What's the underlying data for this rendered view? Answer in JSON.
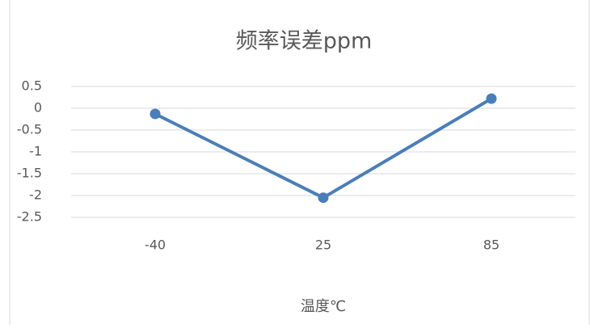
{
  "chart_data": {
    "type": "line",
    "title": "频率误差ppm",
    "x_label": "温度℃",
    "categories": [
      "-40",
      "25",
      "85"
    ],
    "values": [
      -0.13,
      -2.05,
      0.22
    ],
    "color": "#4a7ebb",
    "ylim": [
      -2.5,
      0.5
    ],
    "yticks": [
      0.5,
      0,
      -0.5,
      -1,
      -1.5,
      -2,
      -2.5
    ],
    "grid": true
  }
}
